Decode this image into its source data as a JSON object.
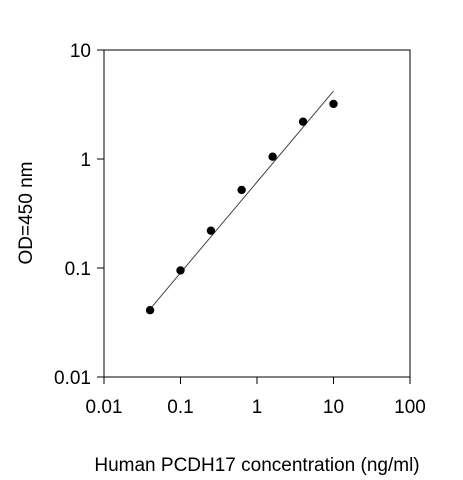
{
  "chart_data": {
    "type": "scatter",
    "title": "",
    "xlabel": "Human PCDH17 concentration (ng/ml)",
    "ylabel": "OD=450 nm",
    "xscale": "log",
    "yscale": "log",
    "xlim": [
      0.01,
      100
    ],
    "ylim": [
      0.01,
      10
    ],
    "x_ticks": [
      0.01,
      0.1,
      1,
      10,
      100
    ],
    "x_tick_labels": [
      "0.01",
      "0.1",
      "1",
      "10",
      "100"
    ],
    "y_ticks": [
      0.01,
      0.1,
      1,
      10
    ],
    "y_tick_labels": [
      "0.01",
      "0.1",
      "1",
      "10"
    ],
    "grid": false,
    "legend": "none",
    "series": [
      {
        "x": [
          0.04,
          0.1,
          0.25,
          0.63,
          1.6,
          4,
          10
        ],
        "y": [
          0.041,
          0.095,
          0.22,
          0.52,
          1.05,
          2.2,
          3.2
        ],
        "color": "#000000",
        "marker": "circle"
      }
    ],
    "fit_line": {
      "x": [
        0.04,
        10
      ],
      "y": [
        0.042,
        4.2
      ],
      "color": "#444444"
    }
  }
}
